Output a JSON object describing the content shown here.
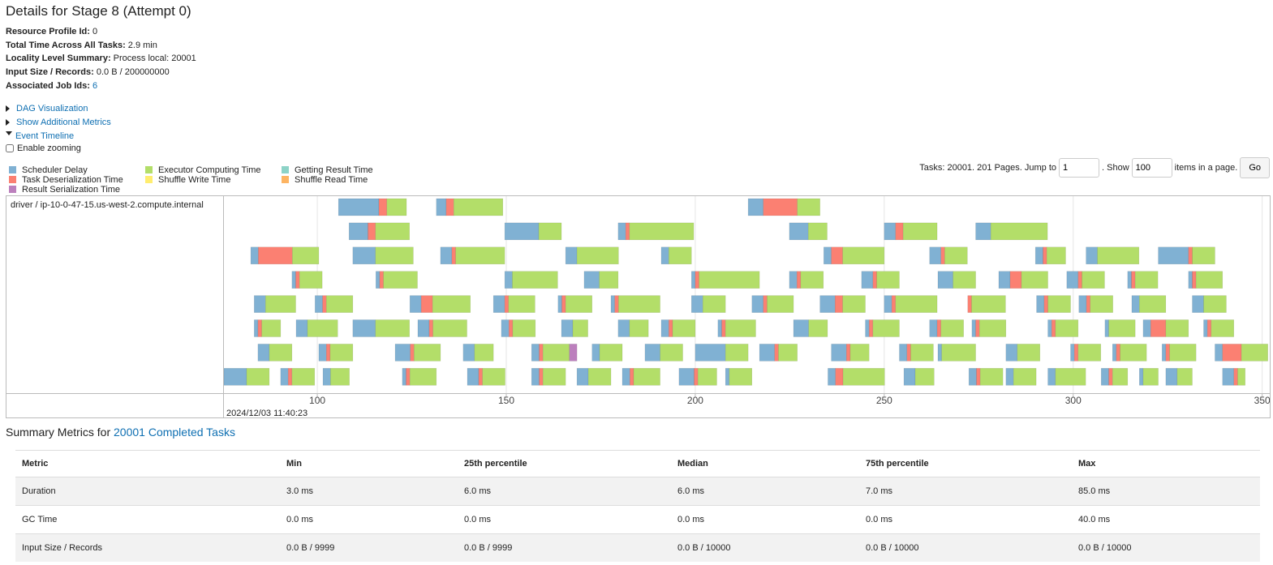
{
  "title": "Details for Stage 8 (Attempt 0)",
  "info": [
    {
      "label": "Resource Profile Id:",
      "value": "0"
    },
    {
      "label": "Total Time Across All Tasks:",
      "value": "2.9 min"
    },
    {
      "label": "Locality Level Summary:",
      "value": "Process local: 20001"
    },
    {
      "label": "Input Size / Records:",
      "value": "0.0 B / 200000000"
    },
    {
      "label": "Associated Job Ids:",
      "value": "6"
    }
  ],
  "links": [
    "DAG Visualization",
    "Show Additional Metrics",
    "Event Timeline"
  ],
  "zoom_label": "Enable zooming",
  "legend": [
    {
      "name": "Scheduler Delay",
      "color": "#80b1d3"
    },
    {
      "name": "Task Deserialization Time",
      "color": "#fb8072"
    },
    {
      "name": "Shuffle Read Time",
      "color": "#fdb462"
    },
    {
      "name": "Executor Computing Time",
      "color": "#b3de69"
    },
    {
      "name": "Shuffle Write Time",
      "color": "#ffed6f"
    },
    {
      "name": "Result Serialization Time",
      "color": "#bc80bd"
    },
    {
      "name": "Getting Result Time",
      "color": "#8dd3c7"
    }
  ],
  "pagination": {
    "text1": "Tasks: 20001. 201 Pages. Jump to",
    "page": "1",
    "text2": ". Show",
    "size": "100",
    "text3": "items in a page.",
    "button": "Go"
  },
  "timeline": {
    "executor": "driver / ip-10-0-47-15.us-west-2.compute.internal",
    "timestamp": "2024/12/03 11:40:23",
    "xlim": [
      75.3,
      352
    ],
    "xticks": [
      100,
      150,
      200,
      250,
      300,
      350
    ],
    "rows": [
      [
        [
          105.6,
          10.7,
          2.1,
          5.2
        ],
        [
          131.5,
          2.6,
          2,
          13
        ],
        [
          214,
          4,
          9,
          6
        ]
      ],
      [
        [
          108.4,
          5,
          2,
          9
        ],
        [
          149.6,
          9,
          0,
          6
        ],
        [
          179.6,
          2,
          1,
          17
        ],
        [
          224.9,
          5,
          0,
          5
        ],
        [
          250,
          3,
          2,
          9
        ],
        [
          274.2,
          4,
          0,
          15
        ]
      ],
      [
        [
          82.4,
          2,
          9,
          7
        ],
        [
          109.4,
          6,
          0,
          10
        ],
        [
          132.6,
          3,
          1,
          13
        ],
        [
          165.7,
          3,
          0,
          11
        ],
        [
          191,
          2,
          0,
          6
        ],
        [
          234,
          2,
          3,
          11
        ],
        [
          262,
          3,
          1,
          6
        ],
        [
          290,
          2,
          1,
          5
        ],
        [
          303.4,
          3,
          0,
          11
        ],
        [
          322.5,
          8,
          1,
          6
        ]
      ],
      [
        [
          93.3,
          1,
          1,
          6
        ],
        [
          115.5,
          1,
          1,
          9
        ],
        [
          149.6,
          2,
          0,
          12
        ],
        [
          170.6,
          4,
          0,
          5
        ],
        [
          199,
          1,
          1,
          16
        ],
        [
          224.9,
          2,
          1,
          6
        ],
        [
          244,
          3,
          1,
          6
        ],
        [
          264.2,
          4,
          0,
          6
        ],
        [
          280.3,
          3,
          3,
          7
        ],
        [
          298.3,
          3,
          1,
          6
        ],
        [
          314.4,
          1,
          1,
          6
        ],
        [
          330.5,
          1,
          1,
          7
        ]
      ],
      [
        [
          83.3,
          3,
          0,
          8
        ],
        [
          99.4,
          2,
          1,
          7
        ],
        [
          124.5,
          3,
          3,
          10
        ],
        [
          146.6,
          3,
          1,
          7
        ],
        [
          163.7,
          1,
          1,
          7
        ],
        [
          177.7,
          1,
          1,
          11
        ],
        [
          199,
          3,
          0,
          6
        ],
        [
          215,
          3,
          1,
          7
        ],
        [
          233,
          4,
          2,
          6
        ],
        [
          250,
          2,
          1,
          11
        ],
        [
          272.1,
          0,
          1,
          9
        ],
        [
          290.3,
          2,
          1,
          6
        ],
        [
          301.5,
          2,
          1,
          6
        ],
        [
          315.5,
          2,
          0,
          7
        ],
        [
          331.5,
          3,
          0,
          6
        ]
      ],
      [
        [
          83.3,
          1,
          1,
          5
        ],
        [
          94.4,
          3,
          0,
          8
        ],
        [
          109.4,
          6,
          0,
          9
        ],
        [
          126.6,
          3,
          1,
          9
        ],
        [
          148.7,
          2,
          1,
          6
        ],
        [
          164.6,
          3,
          0,
          4
        ],
        [
          179.6,
          3,
          0,
          5
        ],
        [
          191,
          2,
          1,
          6
        ],
        [
          206,
          1,
          1,
          8
        ],
        [
          226,
          4,
          0,
          5
        ],
        [
          245,
          1,
          1,
          7
        ],
        [
          262,
          2,
          1,
          6
        ],
        [
          273.2,
          1,
          1,
          7
        ],
        [
          293.3,
          1,
          1,
          6
        ],
        [
          308.4,
          1,
          0,
          7
        ],
        [
          318.5,
          2,
          4,
          6
        ],
        [
          334.5,
          1,
          1,
          6
        ]
      ],
      [
        [
          84.3,
          3,
          0,
          6
        ],
        [
          100.4,
          2,
          1,
          6
        ],
        [
          120.6,
          4,
          1,
          7
        ],
        [
          138.6,
          3,
          0,
          5
        ],
        [
          156.7,
          2,
          1,
          7,
          2
        ],
        [
          172.7,
          2,
          0,
          6
        ],
        [
          186.7,
          4,
          0,
          6
        ],
        [
          200,
          8,
          0,
          6
        ],
        [
          217,
          4,
          1,
          5
        ],
        [
          236,
          4,
          1,
          5
        ],
        [
          254,
          2,
          1,
          6
        ],
        [
          264.2,
          1,
          0,
          9
        ],
        [
          282.2,
          3,
          0,
          6
        ],
        [
          299.3,
          1,
          1,
          6
        ],
        [
          310.4,
          1,
          1,
          7
        ],
        [
          323.5,
          1,
          1,
          7
        ],
        [
          337.5,
          2,
          5,
          7
        ]
      ],
      [
        [
          75.3,
          6,
          0,
          6
        ],
        [
          90.3,
          2,
          1,
          6
        ],
        [
          101.5,
          2,
          0,
          5
        ],
        [
          122.5,
          1,
          1,
          7
        ],
        [
          139.7,
          3,
          1,
          6
        ],
        [
          156.7,
          2,
          1,
          6
        ],
        [
          168.7,
          3,
          0,
          6
        ],
        [
          180.7,
          2,
          1,
          7
        ],
        [
          195.7,
          4,
          1,
          5
        ],
        [
          208,
          1,
          0,
          6
        ],
        [
          235.1,
          2,
          2,
          11
        ],
        [
          255.2,
          3,
          0,
          5
        ],
        [
          272.4,
          2,
          1,
          6
        ],
        [
          282.2,
          2,
          0,
          6
        ],
        [
          293.3,
          2,
          0,
          8
        ],
        [
          307.4,
          2,
          1,
          4
        ],
        [
          317.5,
          1,
          0,
          4
        ],
        [
          324.5,
          3,
          0,
          4
        ],
        [
          339.5,
          3,
          1,
          2
        ]
      ]
    ]
  },
  "summary": {
    "prefix": "Summary Metrics for",
    "link": "20001 Completed Tasks",
    "headers": [
      "Metric",
      "Min",
      "25th percentile",
      "Median",
      "75th percentile",
      "Max"
    ],
    "rows": [
      [
        "Duration",
        "3.0 ms",
        "6.0 ms",
        "6.0 ms",
        "7.0 ms",
        "85.0 ms"
      ],
      [
        "GC Time",
        "0.0 ms",
        "0.0 ms",
        "0.0 ms",
        "0.0 ms",
        "40.0 ms"
      ],
      [
        "Input Size / Records",
        "0.0 B / 9999",
        "0.0 B / 9999",
        "0.0 B / 10000",
        "0.0 B / 10000",
        "0.0 B / 10000"
      ]
    ]
  }
}
